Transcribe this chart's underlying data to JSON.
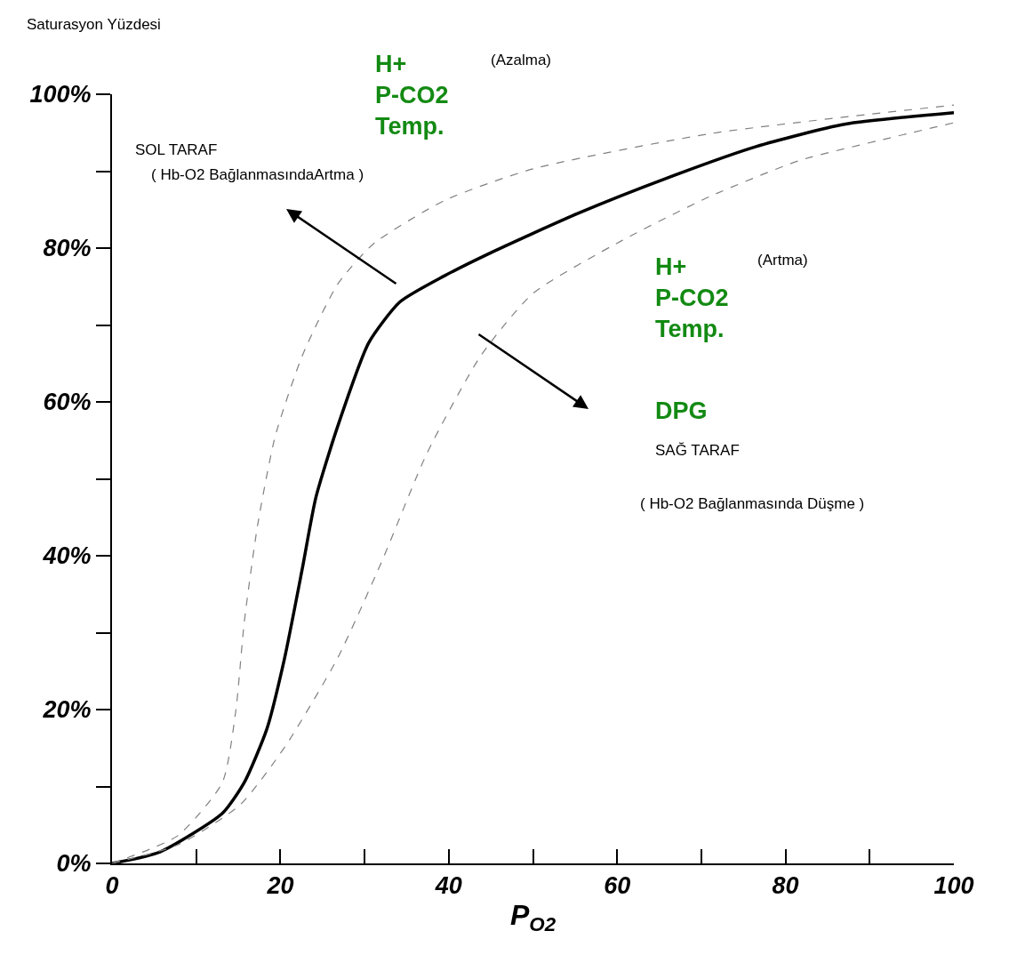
{
  "chart_data": {
    "type": "line",
    "ylabel": "Saturasyon Yüzdesi",
    "xlabel": "P$_{O2}$",
    "xlim": [
      0,
      100
    ],
    "ylim": [
      0,
      100
    ],
    "xticks": [
      0,
      {
        "value": 10,
        "label": null
      },
      20,
      {
        "value": 30,
        "label": null
      },
      40,
      {
        "value": 50,
        "label": null
      },
      60,
      {
        "value": 70,
        "label": null
      },
      80,
      {
        "value": 90,
        "label": null
      },
      100
    ],
    "yticks": [
      {
        "value": 0,
        "label": "0%"
      },
      {
        "value": 10,
        "label": null
      },
      {
        "value": 20,
        "label": "20%"
      },
      {
        "value": 30,
        "label": null
      },
      {
        "value": 40,
        "label": "40%"
      },
      {
        "value": 50,
        "label": null
      },
      {
        "value": 60,
        "label": "60%"
      },
      {
        "value": 70,
        "label": null
      },
      {
        "value": 80,
        "label": "80%"
      },
      {
        "value": 90,
        "label": null
      },
      {
        "value": 100,
        "label": "100%"
      }
    ],
    "marker": "none",
    "series": [
      {
        "color": "#000000",
        "line_style": "solid",
        "x": [
          0,
          5.7,
          13.1,
          15.7,
          18.4,
          20.5,
          22.6,
          24.2,
          26.8,
          30.5,
          34.2,
          39.5,
          44.8,
          55.3,
          65.9,
          76.5,
          87,
          100
        ],
        "values": [
          0,
          1.5,
          6.5,
          10.5,
          17.5,
          26.7,
          38.3,
          47.5,
          56.8,
          67.7,
          73,
          76.4,
          79.3,
          84.5,
          89.1,
          93.2,
          96.1,
          97.6
        ]
      },
      {
        "color": "#808080",
        "line_style": "dashed",
        "x": [
          0,
          7.8,
          13.1,
          14.7,
          15.7,
          17.3,
          19.4,
          22.6,
          26.8,
          31,
          39.5,
          50,
          71.2,
          100
        ],
        "values": [
          0,
          3.6,
          10.5,
          19.8,
          31.3,
          44,
          55.6,
          66,
          75.3,
          80.5,
          86.2,
          90.3,
          94.9,
          98.6
        ]
      },
      {
        "color": "#808080",
        "line_style": "dashed",
        "x": [
          0,
          7.8,
          15.2,
          20.5,
          26.8,
          32.1,
          37.4,
          43.8,
          50,
          60.6,
          71.2,
          81.7,
          92.3,
          100
        ],
        "values": [
          0,
          2.4,
          7.6,
          15.1,
          26.7,
          39.4,
          53.3,
          66,
          74.1,
          81,
          86.8,
          91.4,
          94.3,
          96.3
        ]
      }
    ],
    "annotations": [
      "H+\nP-CO2\nTemp.",
      "(Azalma)",
      "SOL TARAF",
      "( Hb-O2 BağlanmasındaArtma )",
      "H+\nP-CO2\nTemp.",
      "(Artma)",
      "DPG",
      "SAĞ TARAF",
      "( Hb-O2 Bağlanmasında Düşme )"
    ]
  }
}
